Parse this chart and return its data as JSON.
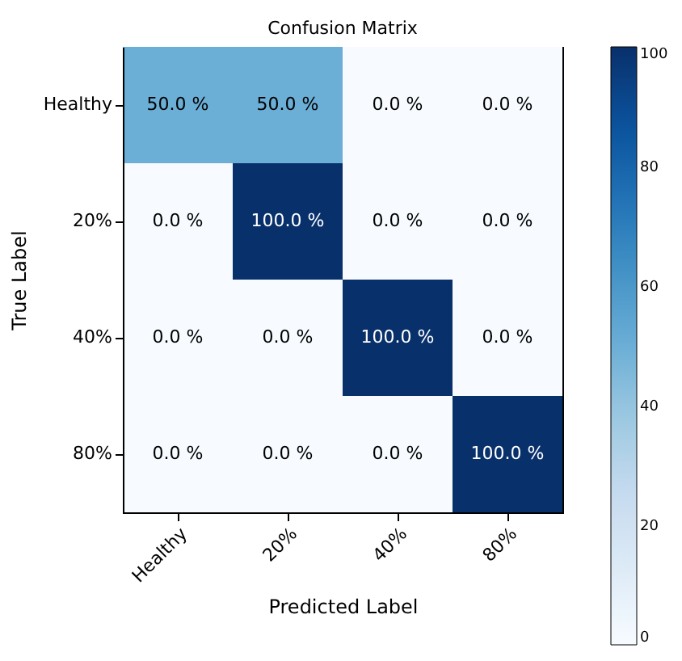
{
  "chart_data": {
    "type": "heatmap",
    "title": "Confusion Matrix",
    "xlabel": "Predicted Label",
    "ylabel": "True Label",
    "categories": [
      "Healthy",
      "20%",
      "40%",
      "80%"
    ],
    "y_categories": [
      "Healthy",
      "20%",
      "40%",
      "80%"
    ],
    "cells": [
      [
        50,
        50,
        0,
        0
      ],
      [
        0,
        100,
        0,
        0
      ],
      [
        0,
        0,
        100,
        0
      ],
      [
        0,
        0,
        0,
        100
      ]
    ],
    "cell_labels": [
      [
        "50.0 %",
        "50.0 %",
        "0.0 %",
        "0.0 %"
      ],
      [
        "0.0 %",
        "100.0 %",
        "0.0 %",
        "0.0 %"
      ],
      [
        "0.0 %",
        "0.0 %",
        "100.0 %",
        "0.0 %"
      ],
      [
        "0.0 %",
        "0.0 %",
        "0.0 %",
        "100.0 %"
      ]
    ],
    "clim": [
      0,
      100
    ],
    "cticks": [
      0,
      20,
      40,
      60,
      80,
      100
    ],
    "grid": false
  }
}
